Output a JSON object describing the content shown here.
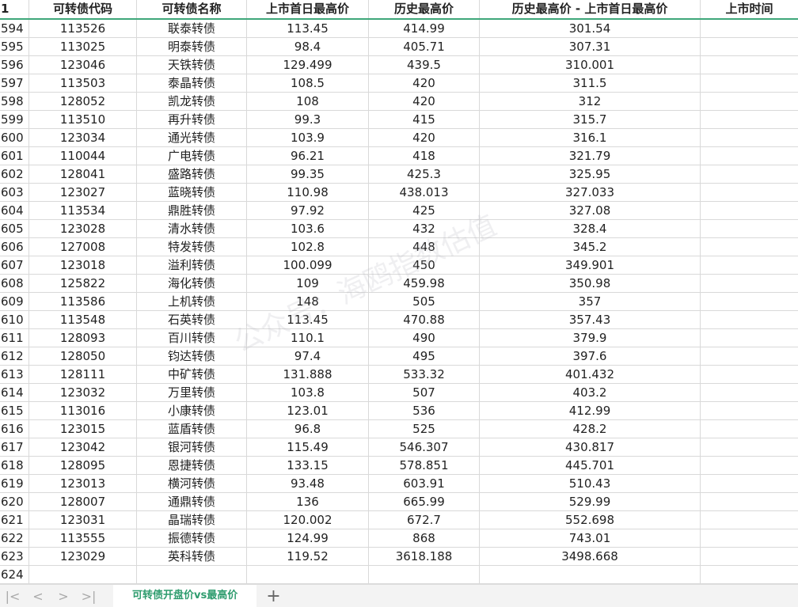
{
  "header": {
    "row_number": "1",
    "columns": [
      "可转债代码",
      "可转债名称",
      "上市首日最高价",
      "历史最高价",
      "历史最高价 - 上市首日最高价",
      "上市时间"
    ]
  },
  "rows": [
    [
      "594",
      "113526",
      "联泰转债",
      "113.45",
      "414.99",
      "301.54",
      ""
    ],
    [
      "595",
      "113025",
      "明泰转债",
      "98.4",
      "405.71",
      "307.31",
      ""
    ],
    [
      "596",
      "123046",
      "天铁转债",
      "129.499",
      "439.5",
      "310.001",
      ""
    ],
    [
      "597",
      "113503",
      "泰晶转债",
      "108.5",
      "420",
      "311.5",
      ""
    ],
    [
      "598",
      "128052",
      "凯龙转债",
      "108",
      "420",
      "312",
      ""
    ],
    [
      "599",
      "113510",
      "再升转债",
      "99.3",
      "415",
      "315.7",
      ""
    ],
    [
      "600",
      "123034",
      "通光转债",
      "103.9",
      "420",
      "316.1",
      ""
    ],
    [
      "601",
      "110044",
      "广电转债",
      "96.21",
      "418",
      "321.79",
      ""
    ],
    [
      "602",
      "128041",
      "盛路转债",
      "99.35",
      "425.3",
      "325.95",
      ""
    ],
    [
      "603",
      "123027",
      "蓝晓转债",
      "110.98",
      "438.013",
      "327.033",
      ""
    ],
    [
      "604",
      "113534",
      "鼎胜转债",
      "97.92",
      "425",
      "327.08",
      ""
    ],
    [
      "605",
      "123028",
      "清水转债",
      "103.6",
      "432",
      "328.4",
      ""
    ],
    [
      "606",
      "127008",
      "特发转债",
      "102.8",
      "448",
      "345.2",
      ""
    ],
    [
      "607",
      "123018",
      "溢利转债",
      "100.099",
      "450",
      "349.901",
      ""
    ],
    [
      "608",
      "125822",
      "海化转债",
      "109",
      "459.98",
      "350.98",
      ""
    ],
    [
      "609",
      "113586",
      "上机转债",
      "148",
      "505",
      "357",
      ""
    ],
    [
      "610",
      "113548",
      "石英转债",
      "113.45",
      "470.88",
      "357.43",
      ""
    ],
    [
      "611",
      "128093",
      "百川转债",
      "110.1",
      "490",
      "379.9",
      ""
    ],
    [
      "612",
      "128050",
      "钧达转债",
      "97.4",
      "495",
      "397.6",
      ""
    ],
    [
      "613",
      "128111",
      "中矿转债",
      "131.888",
      "533.32",
      "401.432",
      ""
    ],
    [
      "614",
      "123032",
      "万里转债",
      "103.8",
      "507",
      "403.2",
      ""
    ],
    [
      "615",
      "113016",
      "小康转债",
      "123.01",
      "536",
      "412.99",
      ""
    ],
    [
      "616",
      "123015",
      "蓝盾转债",
      "96.8",
      "525",
      "428.2",
      ""
    ],
    [
      "617",
      "123042",
      "银河转债",
      "115.49",
      "546.307",
      "430.817",
      ""
    ],
    [
      "618",
      "128095",
      "恩捷转债",
      "133.15",
      "578.851",
      "445.701",
      ""
    ],
    [
      "619",
      "123013",
      "横河转债",
      "93.48",
      "603.91",
      "510.43",
      ""
    ],
    [
      "620",
      "128007",
      "通鼎转债",
      "136",
      "665.99",
      "529.99",
      ""
    ],
    [
      "621",
      "123031",
      "晶瑞转债",
      "120.002",
      "672.7",
      "552.698",
      ""
    ],
    [
      "622",
      "113555",
      "振德转债",
      "124.99",
      "868",
      "743.01",
      ""
    ],
    [
      "623",
      "123029",
      "英科转债",
      "119.52",
      "3618.188",
      "3498.668",
      ""
    ],
    [
      "624",
      "",
      "",
      "",
      "",
      "",
      ""
    ]
  ],
  "sheet_tab": "可转债开盘价vs最高价",
  "add_sheet": "+",
  "nav": [
    "|<",
    "<",
    ">",
    ">|"
  ],
  "watermark": "公众号：海鸥指数估值",
  "colors": {
    "accent": "#2e9c6e"
  }
}
